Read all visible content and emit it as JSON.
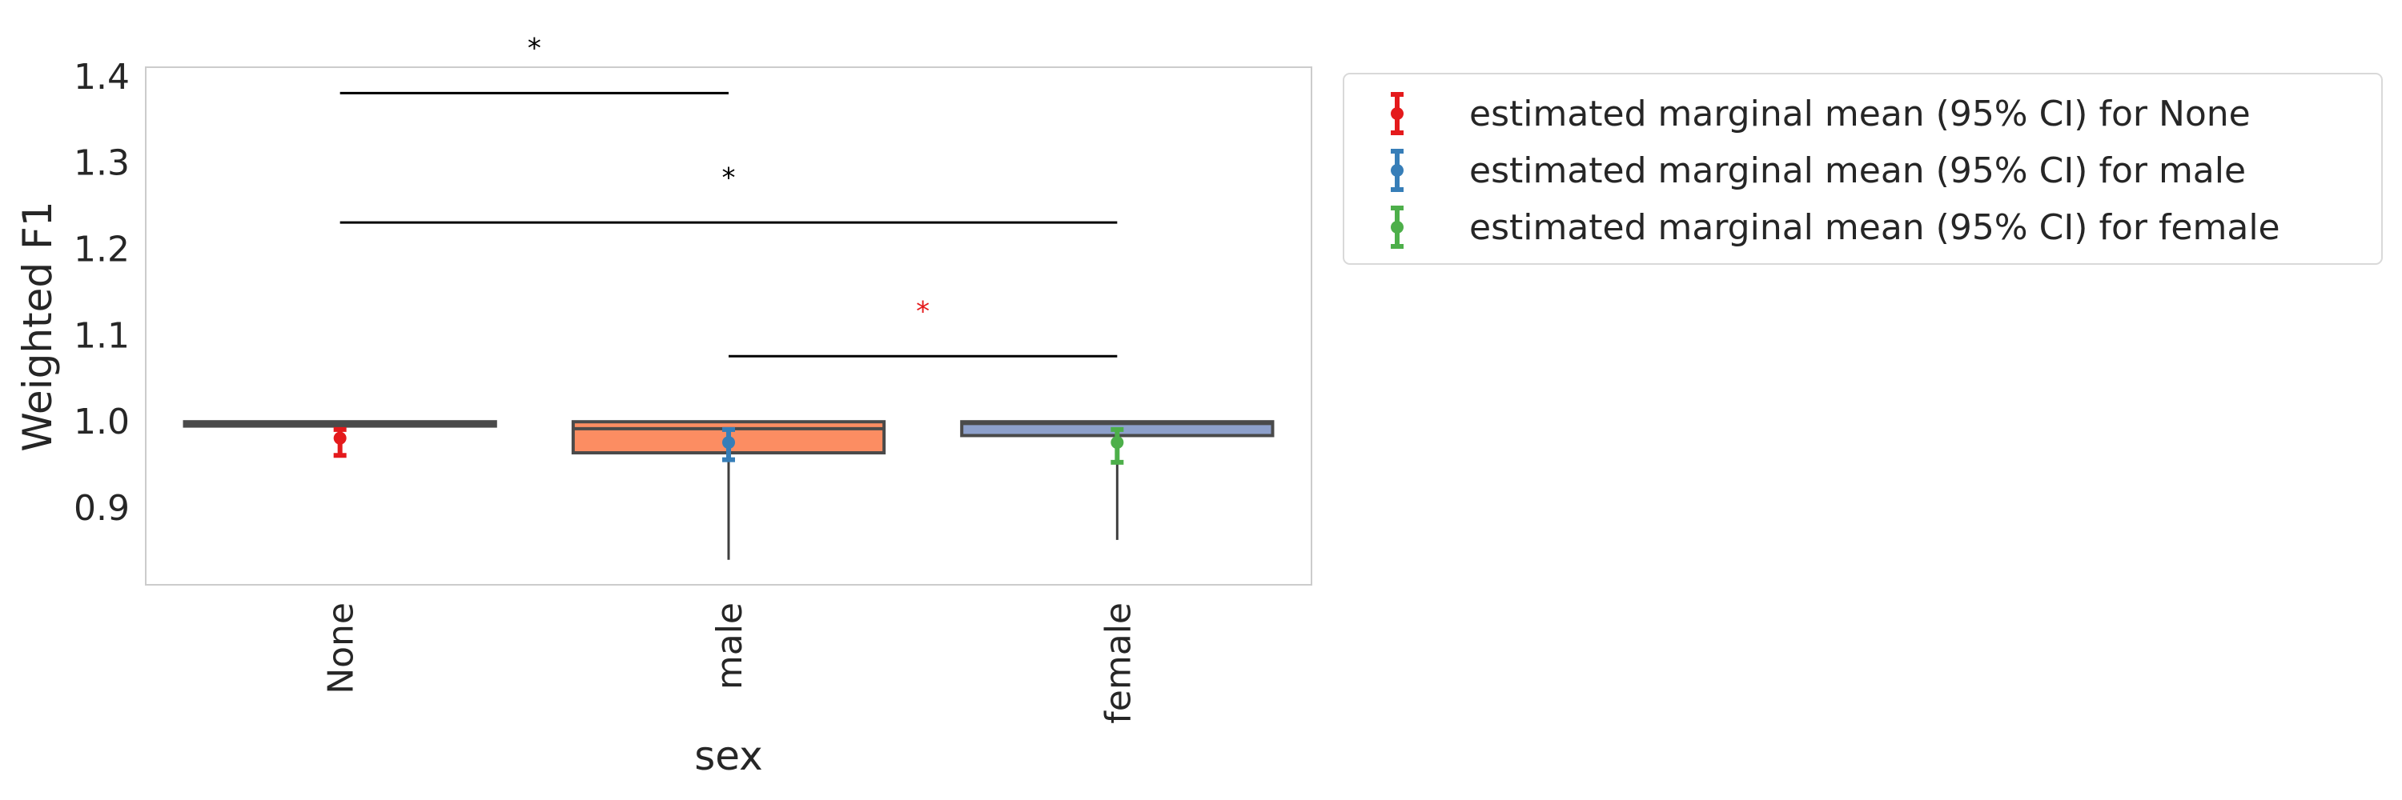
{
  "chart_data": {
    "type": "box",
    "xlabel": "sex",
    "ylabel": "Weighted F1",
    "ylim": [
      0.81,
      1.41
    ],
    "yticks": [
      0.9,
      1.0,
      1.1,
      1.2,
      1.3,
      1.4
    ],
    "ytick_labels": [
      "0.9",
      "1.0",
      "1.1",
      "1.2",
      "1.3",
      "1.4"
    ],
    "grid": false,
    "legend_position": "outside-right",
    "categories": [
      "None",
      "male",
      "female"
    ],
    "boxes": [
      {
        "category": "None",
        "q1": 0.994,
        "median": 0.997,
        "q3": 0.999,
        "whisker_low": 0.994,
        "whisker_high": 0.999,
        "color": "#66c2a5"
      },
      {
        "category": "male",
        "q1": 0.963,
        "median": 0.991,
        "q3": 0.999,
        "whisker_low": 0.839,
        "whisker_high": 0.999,
        "color": "#fc8d62"
      },
      {
        "category": "female",
        "q1": 0.983,
        "median": 0.997,
        "q3": 0.999,
        "whisker_low": 0.862,
        "whisker_high": 0.999,
        "color": "#8da0cb"
      }
    ],
    "marginal_means": [
      {
        "category": "None",
        "mean": 0.98,
        "ci_low": 0.96,
        "ci_high": 0.99,
        "color": "#e41a1c",
        "legend": "estimated marginal mean (95% CI) for None"
      },
      {
        "category": "male",
        "mean": 0.975,
        "ci_low": 0.955,
        "ci_high": 0.99,
        "color": "#377eb8",
        "legend": "estimated marginal mean (95% CI) for male"
      },
      {
        "category": "female",
        "mean": 0.975,
        "ci_low": 0.952,
        "ci_high": 0.99,
        "color": "#4daf4a",
        "legend": "estimated marginal mean (95% CI) for female"
      }
    ],
    "significance_brackets": [
      {
        "from": "None",
        "to": "male",
        "y": 1.38,
        "label": "*",
        "label_y": 1.44,
        "color": "#000000"
      },
      {
        "from": "None",
        "to": "female",
        "y": 1.23,
        "label": "*",
        "label_y": 1.29,
        "color": "#000000"
      },
      {
        "from": "male",
        "to": "female",
        "y": 1.075,
        "label": "*",
        "label_y": 1.135,
        "color": "#e41a1c"
      }
    ]
  }
}
